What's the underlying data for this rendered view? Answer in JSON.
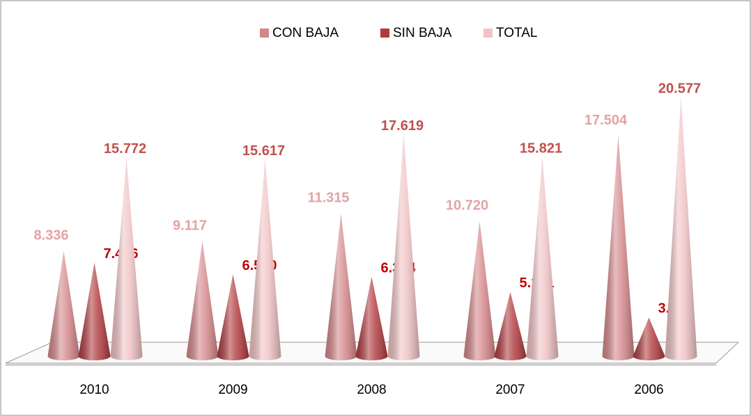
{
  "chart_data": {
    "type": "cone",
    "categories": [
      "2010",
      "2009",
      "2008",
      "2007",
      "2006"
    ],
    "series": [
      {
        "name": "CON BAJA",
        "color": "#d4868a",
        "label_color": "#e3a3a5",
        "values": [
          8336,
          9117,
          11315,
          10720,
          17504
        ],
        "value_labels": [
          "8.336",
          "9.117",
          "11.315",
          "10.720",
          "17.504"
        ]
      },
      {
        "name": "SIN BAJA",
        "color": "#b03a3e",
        "label_color": "#c00000",
        "values": [
          7436,
          6500,
          6304,
          5101,
          3073
        ],
        "value_labels": [
          "7.436",
          "6.500",
          "6.304",
          "5.101",
          "3.073"
        ]
      },
      {
        "name": "TOTAL",
        "color": "#f0c2c4",
        "label_color": "#c0504d",
        "values": [
          15772,
          15617,
          17619,
          15821,
          20577
        ],
        "value_labels": [
          "15.772",
          "15.617",
          "17.619",
          "15.821",
          "20.577"
        ]
      }
    ]
  }
}
